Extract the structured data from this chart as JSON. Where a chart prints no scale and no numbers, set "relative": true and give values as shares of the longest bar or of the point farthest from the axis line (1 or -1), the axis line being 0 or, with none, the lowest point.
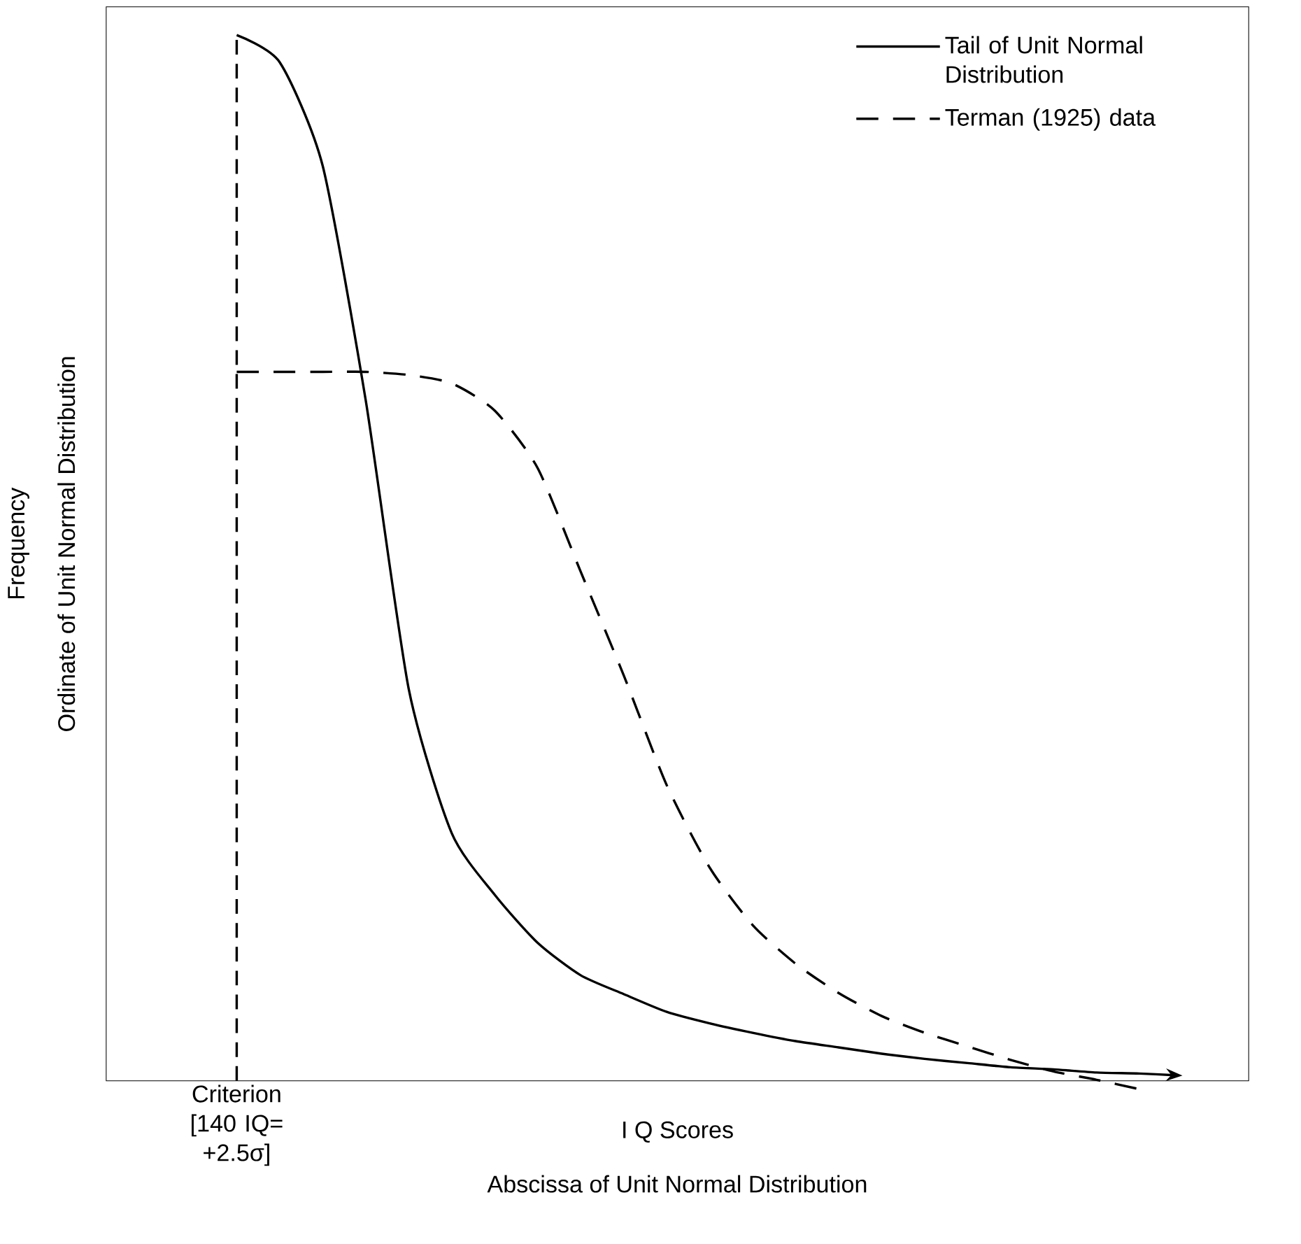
{
  "chart_data": {
    "type": "line",
    "relative": true,
    "xlabel": "I Q Scores",
    "annotations": [
      "Abscissa of Unit Normal Distribution",
      "Frequency",
      "Criterion [140 IQ= +2.5σ]",
      "Ordinate of Unit Normal Distribution"
    ],
    "categories": [
      null,
      null,
      null,
      null,
      null,
      null,
      null,
      null,
      null,
      null,
      null,
      null,
      null,
      null,
      null,
      null,
      null,
      null,
      null,
      null,
      null,
      null,
      null
    ],
    "series": [
      {
        "name": "Tail of Unit Normal Distribution",
        "color": "#000000",
        "line_style": "solid",
        "values": [
          1.0,
          0.974,
          0.875,
          0.651,
          0.375,
          0.237,
          0.178,
          0.132,
          0.101,
          0.083,
          0.066,
          0.055,
          0.046,
          0.038,
          0.032,
          0.026,
          0.021,
          0.017,
          0.013,
          0.011,
          0.008,
          0.007,
          0.005
        ]
      },
      {
        "name": "Terman (1925) data",
        "color": "#000000",
        "line_style": "dashed",
        "values": [
          0.678,
          0.678,
          0.678,
          0.678,
          0.675,
          0.667,
          0.641,
          0.586,
          0.487,
          0.388,
          0.283,
          0.204,
          0.149,
          0.112,
          0.084,
          0.062,
          0.046,
          0.033,
          0.02,
          0.009,
          0.001,
          -0.008,
          null
        ]
      }
    ],
    "legend": "top right",
    "marker": "none"
  }
}
